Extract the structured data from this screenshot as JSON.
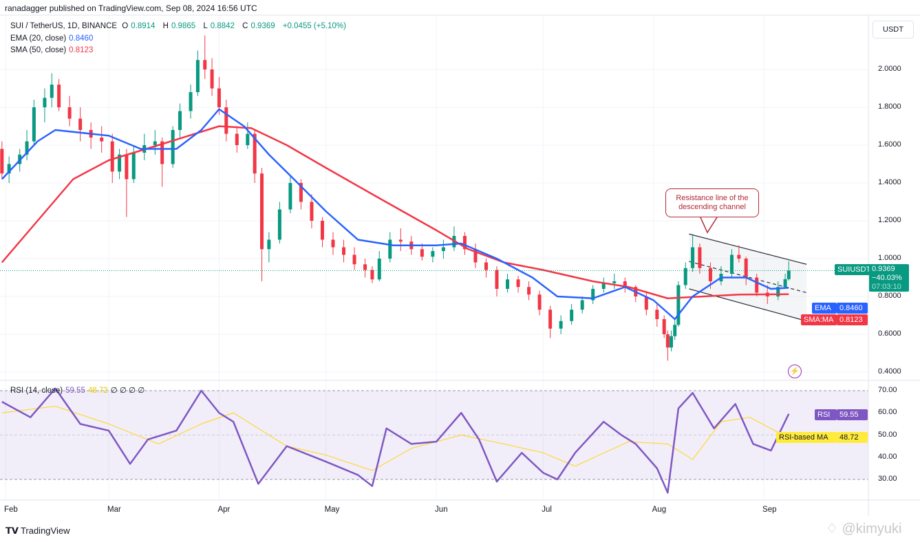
{
  "header": {
    "published": "ranadagger published on TradingView.com, Sep 08, 2024 16:56 UTC"
  },
  "legend": {
    "symbol": "SUI / TetherUS, 1D, BINANCE",
    "open_label": "O",
    "open": "0.8914",
    "high_label": "H",
    "high": "0.9865",
    "low_label": "L",
    "low": "0.8842",
    "close_label": "C",
    "close": "0.9369",
    "change": "+0.0455 (+5.10%)",
    "ema_label": "EMA (20, close)",
    "ema_value": "0.8460",
    "sma_label": "SMA (50, close)",
    "sma_value": "0.8123",
    "rsi_label": "RSI (14, close)",
    "rsi_value": "59.55",
    "rsi_ma_value": "48.72",
    "rsi_extra": "∅ ∅ ∅ ∅"
  },
  "axis": {
    "currency": "USDT",
    "price_ticks": [
      "2.0000",
      "1.8000",
      "1.6000",
      "1.4000",
      "1.2000",
      "1.0000",
      "0.8000",
      "0.6000",
      "0.4000"
    ],
    "rsi_ticks": [
      "70.00",
      "60.00",
      "50.00",
      "40.00",
      "30.00"
    ],
    "months": [
      "Feb",
      "Mar",
      "Apr",
      "May",
      "Jun",
      "Jul",
      "Aug",
      "Sep"
    ]
  },
  "tags": {
    "symbol": "SUIUSDT",
    "price": "0.9369",
    "change_pct": "−40.03%",
    "countdown": "07:03:10",
    "ema": "EMA",
    "ema_value": "0.8460",
    "sma": "SMA:MA",
    "sma_value": "0.8123",
    "rsi": "RSI",
    "rsi_value": "59.55",
    "rsi_ma": "RSI-based MA",
    "rsi_ma_value": "48.72"
  },
  "annotation": {
    "text_line1": "Resistance line of the",
    "text_line2": "descending channel"
  },
  "footer": {
    "brand": "TradingView",
    "watermark": "@kimyuki"
  },
  "colors": {
    "up": "#089981",
    "down": "#f23645",
    "ema": "#2962ff",
    "sma": "#f23645",
    "rsi": "#7e57c2",
    "rsi_ma": "#fdd835"
  },
  "chart_data": {
    "type": "candlestick",
    "symbol": "SUIUSDT",
    "interval": "1D",
    "price_ylim": [
      0.35,
      2.25
    ],
    "rsi_ylim": [
      20,
      78
    ],
    "rsi_bands": [
      30,
      70
    ],
    "candles_fields": [
      "date",
      "open",
      "high",
      "low",
      "close"
    ],
    "candles": [
      [
        "2024-01-31",
        1.58,
        1.62,
        1.42,
        1.45
      ],
      [
        "2024-02-02",
        1.45,
        1.54,
        1.4,
        1.5
      ],
      [
        "2024-02-05",
        1.5,
        1.58,
        1.46,
        1.55
      ],
      [
        "2024-02-07",
        1.55,
        1.68,
        1.52,
        1.62
      ],
      [
        "2024-02-09",
        1.62,
        1.84,
        1.6,
        1.8
      ],
      [
        "2024-02-12",
        1.8,
        1.9,
        1.72,
        1.85
      ],
      [
        "2024-02-14",
        1.85,
        1.98,
        1.8,
        1.92
      ],
      [
        "2024-02-16",
        1.92,
        1.95,
        1.78,
        1.8
      ],
      [
        "2024-02-19",
        1.8,
        1.86,
        1.7,
        1.74
      ],
      [
        "2024-02-22",
        1.74,
        1.8,
        1.62,
        1.68
      ],
      [
        "2024-02-25",
        1.68,
        1.72,
        1.58,
        1.64
      ],
      [
        "2024-02-28",
        1.64,
        1.7,
        1.56,
        1.62
      ],
      [
        "2024-03-02",
        1.62,
        1.66,
        1.4,
        1.46
      ],
      [
        "2024-03-04",
        1.46,
        1.58,
        1.42,
        1.55
      ],
      [
        "2024-03-06",
        1.55,
        1.58,
        1.22,
        1.42
      ],
      [
        "2024-03-08",
        1.42,
        1.6,
        1.4,
        1.56
      ],
      [
        "2024-03-11",
        1.56,
        1.66,
        1.52,
        1.6
      ],
      [
        "2024-03-14",
        1.6,
        1.68,
        1.55,
        1.62
      ],
      [
        "2024-03-16",
        1.62,
        1.64,
        1.38,
        1.5
      ],
      [
        "2024-03-19",
        1.5,
        1.7,
        1.48,
        1.68
      ],
      [
        "2024-03-21",
        1.68,
        1.82,
        1.64,
        1.78
      ],
      [
        "2024-03-24",
        1.78,
        1.92,
        1.74,
        1.88
      ],
      [
        "2024-03-26",
        1.88,
        2.1,
        1.86,
        2.05
      ],
      [
        "2024-03-28",
        2.05,
        2.18,
        1.95,
        2.0
      ],
      [
        "2024-03-30",
        2.0,
        2.06,
        1.86,
        1.9
      ],
      [
        "2024-04-01",
        1.9,
        1.96,
        1.76,
        1.8
      ],
      [
        "2024-04-03",
        1.8,
        1.84,
        1.62,
        1.66
      ],
      [
        "2024-04-06",
        1.66,
        1.7,
        1.56,
        1.6
      ],
      [
        "2024-04-09",
        1.6,
        1.72,
        1.58,
        1.66
      ],
      [
        "2024-04-11",
        1.66,
        1.68,
        1.4,
        1.45
      ],
      [
        "2024-04-13",
        1.45,
        1.48,
        0.88,
        1.05
      ],
      [
        "2024-04-15",
        1.05,
        1.14,
        0.98,
        1.1
      ],
      [
        "2024-04-18",
        1.1,
        1.3,
        1.08,
        1.26
      ],
      [
        "2024-04-21",
        1.26,
        1.44,
        1.24,
        1.4
      ],
      [
        "2024-04-24",
        1.4,
        1.42,
        1.26,
        1.3
      ],
      [
        "2024-04-27",
        1.3,
        1.34,
        1.16,
        1.2
      ],
      [
        "2024-04-30",
        1.2,
        1.22,
        1.06,
        1.1
      ],
      [
        "2024-05-03",
        1.1,
        1.14,
        1.02,
        1.06
      ],
      [
        "2024-05-06",
        1.06,
        1.1,
        0.98,
        1.02
      ],
      [
        "2024-05-09",
        1.02,
        1.06,
        0.94,
        0.97
      ],
      [
        "2024-05-12",
        0.97,
        1.0,
        0.9,
        0.94
      ],
      [
        "2024-05-14",
        0.94,
        0.96,
        0.87,
        0.89
      ],
      [
        "2024-05-16",
        0.89,
        1.04,
        0.88,
        1.0
      ],
      [
        "2024-05-19",
        1.0,
        1.14,
        0.98,
        1.1
      ],
      [
        "2024-05-22",
        1.1,
        1.16,
        1.04,
        1.09
      ],
      [
        "2024-05-25",
        1.09,
        1.12,
        1.02,
        1.05
      ],
      [
        "2024-05-28",
        1.05,
        1.08,
        0.99,
        1.01
      ],
      [
        "2024-05-31",
        1.01,
        1.06,
        0.98,
        1.04
      ],
      [
        "2024-06-03",
        1.04,
        1.1,
        1.0,
        1.06
      ],
      [
        "2024-06-06",
        1.06,
        1.17,
        1.04,
        1.12
      ],
      [
        "2024-06-09",
        1.12,
        1.14,
        1.02,
        1.05
      ],
      [
        "2024-06-12",
        1.05,
        1.08,
        0.95,
        0.98
      ],
      [
        "2024-06-15",
        0.98,
        1.0,
        0.9,
        0.94
      ],
      [
        "2024-06-18",
        0.94,
        0.96,
        0.8,
        0.84
      ],
      [
        "2024-06-21",
        0.84,
        0.92,
        0.82,
        0.89
      ],
      [
        "2024-06-24",
        0.89,
        0.91,
        0.82,
        0.85
      ],
      [
        "2024-06-27",
        0.85,
        0.88,
        0.78,
        0.81
      ],
      [
        "2024-06-30",
        0.81,
        0.83,
        0.7,
        0.73
      ],
      [
        "2024-07-03",
        0.73,
        0.75,
        0.58,
        0.63
      ],
      [
        "2024-07-06",
        0.63,
        0.7,
        0.6,
        0.67
      ],
      [
        "2024-07-09",
        0.67,
        0.76,
        0.65,
        0.73
      ],
      [
        "2024-07-12",
        0.73,
        0.8,
        0.71,
        0.78
      ],
      [
        "2024-07-15",
        0.78,
        0.86,
        0.76,
        0.84
      ],
      [
        "2024-07-18",
        0.84,
        0.9,
        0.82,
        0.87
      ],
      [
        "2024-07-21",
        0.87,
        0.92,
        0.84,
        0.88
      ],
      [
        "2024-07-24",
        0.88,
        0.9,
        0.82,
        0.85
      ],
      [
        "2024-07-27",
        0.85,
        0.86,
        0.77,
        0.8
      ],
      [
        "2024-07-30",
        0.8,
        0.82,
        0.7,
        0.73
      ],
      [
        "2024-08-02",
        0.73,
        0.76,
        0.64,
        0.68
      ],
      [
        "2024-08-04",
        0.68,
        0.7,
        0.58,
        0.6
      ],
      [
        "2024-08-05",
        0.6,
        0.62,
        0.46,
        0.53
      ],
      [
        "2024-08-06",
        0.53,
        0.62,
        0.51,
        0.59
      ],
      [
        "2024-08-07",
        0.59,
        0.68,
        0.57,
        0.65
      ],
      [
        "2024-08-08",
        0.65,
        0.88,
        0.64,
        0.86
      ],
      [
        "2024-08-10",
        0.86,
        0.98,
        0.84,
        0.95
      ],
      [
        "2024-08-12",
        0.95,
        1.13,
        0.93,
        1.06
      ],
      [
        "2024-08-14",
        1.06,
        1.08,
        0.92,
        0.95
      ],
      [
        "2024-08-17",
        0.95,
        0.98,
        0.84,
        0.88
      ],
      [
        "2024-08-20",
        0.88,
        0.96,
        0.86,
        0.92
      ],
      [
        "2024-08-23",
        0.92,
        1.05,
        0.9,
        1.02
      ],
      [
        "2024-08-25",
        1.02,
        1.07,
        0.98,
        1.0
      ],
      [
        "2024-08-27",
        1.0,
        1.01,
        0.86,
        0.9
      ],
      [
        "2024-08-30",
        0.9,
        0.92,
        0.8,
        0.82
      ],
      [
        "2024-09-02",
        0.82,
        0.86,
        0.76,
        0.8
      ],
      [
        "2024-09-05",
        0.8,
        0.88,
        0.78,
        0.85
      ],
      [
        "2024-09-07",
        0.85,
        0.92,
        0.84,
        0.8914
      ],
      [
        "2024-09-08",
        0.8914,
        0.9865,
        0.8842,
        0.9369
      ]
    ],
    "ema20": [
      [
        "2024-01-31",
        1.42
      ],
      [
        "2024-02-10",
        1.62
      ],
      [
        "2024-02-15",
        1.68
      ],
      [
        "2024-03-01",
        1.65
      ],
      [
        "2024-03-10",
        1.58
      ],
      [
        "2024-03-20",
        1.58
      ],
      [
        "2024-03-27",
        1.68
      ],
      [
        "2024-04-01",
        1.79
      ],
      [
        "2024-04-08",
        1.7
      ],
      [
        "2024-04-15",
        1.55
      ],
      [
        "2024-04-22",
        1.42
      ],
      [
        "2024-05-01",
        1.25
      ],
      [
        "2024-05-10",
        1.1
      ],
      [
        "2024-05-20",
        1.07
      ],
      [
        "2024-06-01",
        1.07
      ],
      [
        "2024-06-08",
        1.08
      ],
      [
        "2024-06-18",
        1.0
      ],
      [
        "2024-06-28",
        0.9
      ],
      [
        "2024-07-05",
        0.8
      ],
      [
        "2024-07-15",
        0.79
      ],
      [
        "2024-07-24",
        0.85
      ],
      [
        "2024-08-01",
        0.78
      ],
      [
        "2024-08-07",
        0.68
      ],
      [
        "2024-08-12",
        0.8
      ],
      [
        "2024-08-20",
        0.9
      ],
      [
        "2024-08-27",
        0.9
      ],
      [
        "2024-09-03",
        0.84
      ],
      [
        "2024-09-08",
        0.846
      ]
    ],
    "sma50": [
      [
        "2024-01-31",
        0.98
      ],
      [
        "2024-02-10",
        1.2
      ],
      [
        "2024-02-20",
        1.42
      ],
      [
        "2024-03-01",
        1.52
      ],
      [
        "2024-03-15",
        1.6
      ],
      [
        "2024-04-01",
        1.7
      ],
      [
        "2024-04-10",
        1.69
      ],
      [
        "2024-04-20",
        1.6
      ],
      [
        "2024-05-01",
        1.48
      ],
      [
        "2024-05-15",
        1.33
      ],
      [
        "2024-06-01",
        1.15
      ],
      [
        "2024-06-10",
        1.05
      ],
      [
        "2024-06-20",
        0.98
      ],
      [
        "2024-07-01",
        0.94
      ],
      [
        "2024-07-15",
        0.88
      ],
      [
        "2024-07-25",
        0.85
      ],
      [
        "2024-08-05",
        0.79
      ],
      [
        "2024-08-15",
        0.8
      ],
      [
        "2024-08-25",
        0.81
      ],
      [
        "2024-09-08",
        0.812
      ]
    ],
    "rsi": [
      [
        "2024-01-31",
        65
      ],
      [
        "2024-02-08",
        58
      ],
      [
        "2024-02-15",
        71
      ],
      [
        "2024-02-22",
        55
      ],
      [
        "2024-03-01",
        52
      ],
      [
        "2024-03-07",
        37
      ],
      [
        "2024-03-12",
        48
      ],
      [
        "2024-03-20",
        52
      ],
      [
        "2024-03-27",
        70
      ],
      [
        "2024-04-01",
        60
      ],
      [
        "2024-04-05",
        56
      ],
      [
        "2024-04-12",
        28
      ],
      [
        "2024-04-20",
        45
      ],
      [
        "2024-05-01",
        38
      ],
      [
        "2024-05-10",
        32
      ],
      [
        "2024-05-14",
        27
      ],
      [
        "2024-05-18",
        53
      ],
      [
        "2024-05-25",
        46
      ],
      [
        "2024-06-01",
        47
      ],
      [
        "2024-06-08",
        60
      ],
      [
        "2024-06-13",
        48
      ],
      [
        "2024-06-18",
        29
      ],
      [
        "2024-06-25",
        42
      ],
      [
        "2024-07-01",
        33
      ],
      [
        "2024-07-05",
        30
      ],
      [
        "2024-07-10",
        42
      ],
      [
        "2024-07-18",
        56
      ],
      [
        "2024-07-23",
        50
      ],
      [
        "2024-07-27",
        46
      ],
      [
        "2024-08-02",
        35
      ],
      [
        "2024-08-05",
        24
      ],
      [
        "2024-08-08",
        62
      ],
      [
        "2024-08-12",
        69
      ],
      [
        "2024-08-18",
        53
      ],
      [
        "2024-08-24",
        64
      ],
      [
        "2024-08-29",
        46
      ],
      [
        "2024-09-03",
        43
      ],
      [
        "2024-09-08",
        59.55
      ]
    ],
    "rsi_ma": [
      [
        "2024-01-31",
        60
      ],
      [
        "2024-02-15",
        63
      ],
      [
        "2024-03-01",
        55
      ],
      [
        "2024-03-15",
        46
      ],
      [
        "2024-03-27",
        55
      ],
      [
        "2024-04-05",
        60
      ],
      [
        "2024-04-20",
        45
      ],
      [
        "2024-05-01",
        41
      ],
      [
        "2024-05-14",
        34
      ],
      [
        "2024-05-25",
        44
      ],
      [
        "2024-06-08",
        50
      ],
      [
        "2024-06-20",
        46
      ],
      [
        "2024-07-01",
        42
      ],
      [
        "2024-07-10",
        36
      ],
      [
        "2024-07-25",
        47
      ],
      [
        "2024-08-05",
        46
      ],
      [
        "2024-08-12",
        39
      ],
      [
        "2024-08-20",
        56
      ],
      [
        "2024-08-28",
        58
      ],
      [
        "2024-09-08",
        48.72
      ]
    ],
    "channel": {
      "upper": [
        [
          "2024-08-11",
          1.13
        ],
        [
          "2024-09-13",
          0.97
        ]
      ],
      "middle": [
        [
          "2024-08-11",
          0.985
        ],
        [
          "2024-09-13",
          0.82
        ]
      ],
      "lower": [
        [
          "2024-08-11",
          0.84
        ],
        [
          "2024-09-13",
          0.67
        ]
      ]
    }
  }
}
